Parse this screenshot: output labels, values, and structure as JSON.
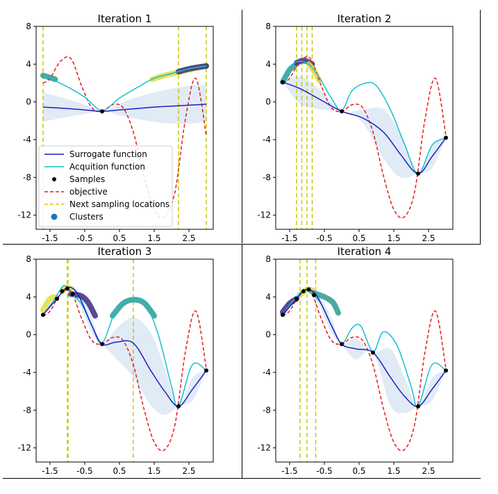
{
  "chart_data": [
    {
      "type": "line",
      "title": "Iteration 1",
      "xlim": [
        -1.9,
        3.2
      ],
      "ylim": [
        -13.5,
        8
      ],
      "x_ticks": [
        "-1.5",
        "-0.5",
        "0.5",
        "1.5",
        "2.5"
      ],
      "x_tick_values": [
        -1.5,
        -0.5,
        0.5,
        1.5,
        2.5
      ],
      "y_ticks": [
        "8",
        "4",
        "0",
        "-4",
        "-8",
        "-12"
      ],
      "y_tick_values": [
        8,
        4,
        0,
        -4,
        -8,
        -12
      ],
      "grid": false,
      "legend": {
        "placement": "lower-left",
        "entries": [
          {
            "label": "Surrogate function",
            "kind": "line",
            "color": "#1f1fbf"
          },
          {
            "label": "Acquition function",
            "kind": "line",
            "color": "#17becf"
          },
          {
            "label": "Samples",
            "kind": "dot",
            "color": "#000000"
          },
          {
            "label": "objective",
            "kind": "dashed",
            "color": "#e41a1c"
          },
          {
            "label": "Next sampling locations",
            "kind": "dashed",
            "color": "#c8c800"
          },
          {
            "label": "Clusters",
            "kind": "cluster",
            "color": "#1f77b4"
          }
        ]
      },
      "samples": [
        [
          0,
          -1.0
        ]
      ],
      "next_sampling_locations": [
        -1.7,
        2.2,
        3.0
      ],
      "surrogate": {
        "x": [
          -1.7,
          -1,
          -0.5,
          0,
          0.5,
          1,
          1.5,
          2,
          2.5,
          3
        ],
        "y": [
          -0.55,
          -0.7,
          -0.85,
          -1.0,
          -0.85,
          -0.7,
          -0.55,
          -0.45,
          -0.35,
          -0.25
        ]
      },
      "surrogate_band": {
        "x": [
          -1.7,
          -1,
          -0.5,
          0,
          0.5,
          1,
          1.5,
          2,
          2.5,
          3
        ],
        "lower": [
          -2.1,
          -1.6,
          -1.3,
          -1.0,
          -1.4,
          -1.8,
          -2.1,
          -2.3,
          -2.3,
          -2.1
        ],
        "upper": [
          1.0,
          0.3,
          -0.3,
          -1.0,
          -0.2,
          0.5,
          1.0,
          1.4,
          1.7,
          1.8
        ]
      },
      "acquisition": {
        "x": [
          -1.7,
          -1.4,
          -1,
          -0.5,
          0,
          0.5,
          1,
          1.5,
          2,
          2.5,
          3
        ],
        "y": [
          2.8,
          2.3,
          1.6,
          0.5,
          -0.9,
          0.4,
          1.5,
          2.5,
          3.0,
          3.5,
          3.8
        ]
      },
      "objective": {
        "x": [
          -1.7,
          -1.5,
          -1.2,
          -0.9,
          -0.6,
          -0.3,
          0,
          0.3,
          0.6,
          0.9,
          1.2,
          1.5,
          1.8,
          2.1,
          2.4,
          2.7,
          3.0
        ],
        "y": [
          2.0,
          2.5,
          4.3,
          4.6,
          1.8,
          -0.6,
          -1.0,
          -0.3,
          -0.6,
          -3.2,
          -7.8,
          -11.4,
          -12.2,
          -9.5,
          -1.8,
          2.5,
          -3.6
        ]
      },
      "clusters": [
        {
          "x": [
            -1.7,
            -1.35
          ],
          "y": [
            2.8,
            2.4
          ],
          "color": "#2e9a8f"
        },
        {
          "x": [
            1.45,
            1.8,
            2.15,
            2.5,
            3.0
          ],
          "y": [
            2.4,
            2.8,
            3.1,
            3.4,
            3.8
          ],
          "color": "#dede3a"
        },
        {
          "x": [
            2.2,
            2.5,
            2.8,
            3.0
          ],
          "y": [
            3.2,
            3.5,
            3.7,
            3.8
          ],
          "color": "#3b2a7f"
        }
      ]
    },
    {
      "type": "line",
      "title": "Iteration 2",
      "xlim": [
        -1.9,
        3.2
      ],
      "ylim": [
        -13.5,
        8
      ],
      "x_ticks": [
        "-1.5",
        "-0.5",
        "0.5",
        "1.5",
        "2.5"
      ],
      "x_tick_values": [
        -1.5,
        -0.5,
        0.5,
        1.5,
        2.5
      ],
      "y_ticks": [
        "8",
        "4",
        "0",
        "-4",
        "-8",
        "-12"
      ],
      "y_tick_values": [
        8,
        4,
        0,
        -4,
        -8,
        -12
      ],
      "grid": false,
      "samples": [
        [
          -1.7,
          2.1
        ],
        [
          0,
          -1.0
        ],
        [
          2.2,
          -7.6
        ],
        [
          3.0,
          -3.8
        ]
      ],
      "next_sampling_locations": [
        -1.3,
        -1.15,
        -1.0,
        -0.85
      ],
      "surrogate": {
        "x": [
          -1.7,
          -1.2,
          -0.6,
          0,
          0.6,
          1.2,
          1.7,
          2.2,
          2.6,
          3.0
        ],
        "y": [
          2.1,
          1.4,
          0.2,
          -1.0,
          -1.7,
          -3.2,
          -5.6,
          -7.6,
          -5.8,
          -3.8
        ]
      },
      "surrogate_band": {
        "x": [
          -1.7,
          -1.2,
          -0.6,
          0,
          0.6,
          1.2,
          1.7,
          2.2,
          2.6,
          3.0
        ],
        "lower": [
          2.1,
          -0.2,
          -0.8,
          -1.0,
          -2.2,
          -6.0,
          -8.0,
          -7.6,
          -7.0,
          -3.8
        ],
        "upper": [
          2.1,
          2.7,
          1.2,
          -1.0,
          -0.8,
          -0.8,
          -3.5,
          -7.6,
          -4.6,
          -3.8
        ]
      },
      "acquisition": {
        "x": [
          -1.7,
          -1.5,
          -1.2,
          -0.9,
          -0.6,
          -0.3,
          0,
          0.3,
          0.7,
          1.0,
          1.4,
          1.8,
          2.2,
          2.6,
          3.0
        ],
        "y": [
          2.1,
          3.7,
          4.3,
          3.8,
          2.3,
          0.4,
          -0.9,
          1.2,
          2.0,
          1.7,
          -0.8,
          -4.4,
          -7.6,
          -4.6,
          -3.8
        ]
      },
      "objective": {
        "x": [
          -1.7,
          -1.5,
          -1.2,
          -0.9,
          -0.6,
          -0.3,
          0,
          0.3,
          0.6,
          0.9,
          1.2,
          1.5,
          1.8,
          2.1,
          2.4,
          2.7,
          3.0
        ],
        "y": [
          2.0,
          2.5,
          4.3,
          4.6,
          1.8,
          -0.6,
          -1.0,
          -0.3,
          -0.6,
          -3.2,
          -7.8,
          -11.4,
          -12.2,
          -9.5,
          -1.8,
          2.5,
          -3.6
        ]
      },
      "clusters": [
        {
          "x": [
            -1.7,
            -1.5,
            -1.3
          ],
          "y": [
            2.1,
            3.4,
            4.0
          ],
          "color": "#2e9a8f"
        },
        {
          "x": [
            -1.3,
            -1.15,
            -1.0,
            -0.85
          ],
          "y": [
            4.15,
            4.35,
            4.3,
            4.0
          ],
          "color": "#3b2a7f"
        },
        {
          "x": [
            -0.95,
            -0.8,
            -0.65
          ],
          "y": [
            4.0,
            3.3,
            2.3
          ],
          "color": "#dede3a"
        }
      ]
    },
    {
      "type": "line",
      "title": "Iteration 3",
      "xlim": [
        -1.9,
        3.2
      ],
      "ylim": [
        -13.5,
        8
      ],
      "x_ticks": [
        "-1.5",
        "-0.5",
        "0.5",
        "1.5",
        "2.5"
      ],
      "x_tick_values": [
        -1.5,
        -0.5,
        0.5,
        1.5,
        2.5
      ],
      "y_ticks": [
        "8",
        "4",
        "0",
        "-4",
        "-8",
        "-12"
      ],
      "y_tick_values": [
        8,
        4,
        0,
        -4,
        -8,
        -12
      ],
      "grid": false,
      "samples": [
        [
          -1.7,
          2.1
        ],
        [
          -1.3,
          3.8
        ],
        [
          -1.15,
          4.6
        ],
        [
          -1.0,
          4.9
        ],
        [
          -0.85,
          4.3
        ],
        [
          0,
          -1.0
        ],
        [
          2.2,
          -7.6
        ],
        [
          3.0,
          -3.8
        ]
      ],
      "next_sampling_locations": [
        -1.0,
        -0.98,
        0.9
      ],
      "surrogate": {
        "x": [
          -1.7,
          -1.3,
          -1.0,
          -0.7,
          -0.3,
          0,
          0.4,
          0.9,
          1.4,
          1.8,
          2.2,
          2.6,
          3.0
        ],
        "y": [
          2.1,
          3.8,
          5.0,
          4.3,
          1.0,
          -1.0,
          -0.8,
          -0.9,
          -3.8,
          -6.0,
          -7.6,
          -5.8,
          -3.8
        ]
      },
      "surrogate_band": {
        "x": [
          -1.7,
          -1.3,
          -1.0,
          -0.7,
          -0.3,
          0,
          0.4,
          0.9,
          1.4,
          1.8,
          2.2,
          2.6,
          3.0
        ],
        "lower": [
          2.1,
          3.8,
          5.0,
          3.6,
          0.2,
          -1.0,
          -2.5,
          -4.5,
          -7.5,
          -8.5,
          -7.6,
          -7.0,
          -3.8
        ],
        "upper": [
          2.1,
          3.8,
          5.0,
          4.8,
          1.8,
          -1.0,
          0.6,
          1.8,
          0.2,
          -3.5,
          -7.6,
          -4.6,
          -3.8
        ]
      },
      "acquisition": {
        "x": [
          -1.7,
          -1.4,
          -1.1,
          -0.9,
          -0.6,
          -0.3,
          0,
          0.4,
          0.8,
          1.2,
          1.6,
          2.0,
          2.2,
          2.6,
          3.0
        ],
        "y": [
          2.1,
          3.6,
          5.2,
          4.3,
          3.3,
          1.0,
          -0.9,
          2.6,
          3.6,
          3.5,
          0.2,
          -5.5,
          -7.6,
          -3.2,
          -3.8
        ]
      },
      "objective": {
        "x": [
          -1.7,
          -1.5,
          -1.2,
          -0.9,
          -0.6,
          -0.3,
          0,
          0.3,
          0.6,
          0.9,
          1.2,
          1.5,
          1.8,
          2.1,
          2.4,
          2.7,
          3.0
        ],
        "y": [
          2.0,
          2.5,
          4.3,
          4.6,
          1.8,
          -0.6,
          -1.0,
          -0.3,
          -0.6,
          -3.2,
          -7.8,
          -11.4,
          -12.2,
          -9.5,
          -1.8,
          2.5,
          -3.6
        ]
      },
      "clusters": [
        {
          "x": [
            -1.7,
            -1.5,
            -1.3
          ],
          "y": [
            2.6,
            3.8,
            4.0
          ],
          "color": "#dede3a"
        },
        {
          "x": [
            -1.15,
            -1.0,
            -0.9
          ],
          "y": [
            4.6,
            5.0,
            4.8
          ],
          "color": "#dede3a"
        },
        {
          "x": [
            -0.9,
            -0.6,
            -0.4,
            -0.2
          ],
          "y": [
            4.3,
            4.1,
            3.4,
            2.0
          ],
          "color": "#3b2a7f"
        },
        {
          "x": [
            0.3,
            0.6,
            0.9,
            1.2,
            1.5
          ],
          "y": [
            2.0,
            3.3,
            3.7,
            3.4,
            2.0
          ],
          "color": "#2e9a8f"
        }
      ]
    },
    {
      "type": "line",
      "title": "Iteration 4",
      "xlim": [
        -1.9,
        3.2
      ],
      "ylim": [
        -13.5,
        8
      ],
      "x_ticks": [
        "-1.5",
        "-0.5",
        "0.5",
        "1.5",
        "2.5"
      ],
      "x_tick_values": [
        -1.5,
        -0.5,
        0.5,
        1.5,
        2.5
      ],
      "y_ticks": [
        "8",
        "4",
        "0",
        "-4",
        "-8",
        "-12"
      ],
      "y_tick_values": [
        8,
        4,
        0,
        -4,
        -8,
        -12
      ],
      "grid": false,
      "samples": [
        [
          -1.7,
          2.1
        ],
        [
          -1.3,
          3.8
        ],
        [
          -1.1,
          4.6
        ],
        [
          -0.95,
          4.8
        ],
        [
          -0.8,
          4.2
        ],
        [
          0,
          -1.0
        ],
        [
          0.9,
          -1.9
        ],
        [
          2.2,
          -7.6
        ],
        [
          3.0,
          -3.8
        ]
      ],
      "next_sampling_locations": [
        -1.2,
        -1.0,
        -0.75
      ],
      "surrogate": {
        "x": [
          -1.7,
          -1.3,
          -1.0,
          -0.7,
          -0.3,
          0,
          0.4,
          0.9,
          1.4,
          1.8,
          2.2,
          2.6,
          3.0
        ],
        "y": [
          2.1,
          3.8,
          4.8,
          4.0,
          1.0,
          -1.0,
          -1.5,
          -1.9,
          -4.5,
          -6.5,
          -7.6,
          -5.8,
          -3.8
        ]
      },
      "surrogate_band": {
        "x": [
          -1.7,
          -1.3,
          -1.0,
          -0.7,
          -0.3,
          0,
          0.4,
          0.9,
          1.4,
          1.8,
          2.2,
          2.6,
          3.0
        ],
        "lower": [
          2.1,
          3.8,
          4.8,
          3.5,
          0.2,
          -1.0,
          -2.6,
          -1.9,
          -7.5,
          -8.3,
          -7.6,
          -7.0,
          -3.8
        ],
        "upper": [
          2.1,
          3.8,
          4.8,
          4.5,
          1.8,
          -1.0,
          -0.4,
          -1.9,
          -1.5,
          -4.5,
          -7.6,
          -4.6,
          -3.8
        ]
      },
      "acquisition": {
        "x": [
          -1.7,
          -1.4,
          -1.1,
          -0.9,
          -0.6,
          -0.3,
          0,
          0.3,
          0.55,
          0.9,
          1.2,
          1.6,
          2.0,
          2.2,
          2.6,
          3.0
        ],
        "y": [
          2.1,
          3.6,
          4.7,
          4.4,
          3.3,
          1.0,
          -0.9,
          0.7,
          0.9,
          -1.8,
          0.3,
          -1.2,
          -5.5,
          -7.6,
          -3.2,
          -3.8
        ]
      },
      "objective": {
        "x": [
          -1.7,
          -1.5,
          -1.2,
          -0.9,
          -0.6,
          -0.3,
          0,
          0.3,
          0.6,
          0.9,
          1.2,
          1.5,
          1.8,
          2.1,
          2.4,
          2.7,
          3.0
        ],
        "y": [
          2.0,
          2.5,
          4.3,
          4.6,
          1.8,
          -0.6,
          -1.0,
          -0.3,
          -0.6,
          -3.2,
          -7.8,
          -11.4,
          -12.2,
          -9.5,
          -1.8,
          2.5,
          -3.6
        ]
      },
      "clusters": [
        {
          "x": [
            -1.7,
            -1.5,
            -1.3
          ],
          "y": [
            2.4,
            3.3,
            3.8
          ],
          "color": "#3b2a7f"
        },
        {
          "x": [
            -1.2,
            -1.0,
            -0.85
          ],
          "y": [
            4.2,
            4.8,
            4.7
          ],
          "color": "#dede3a"
        },
        {
          "x": [
            -0.8,
            -0.5,
            -0.25,
            -0.1
          ],
          "y": [
            4.4,
            4.0,
            3.4,
            2.3
          ],
          "color": "#2e9a8f"
        }
      ]
    }
  ]
}
